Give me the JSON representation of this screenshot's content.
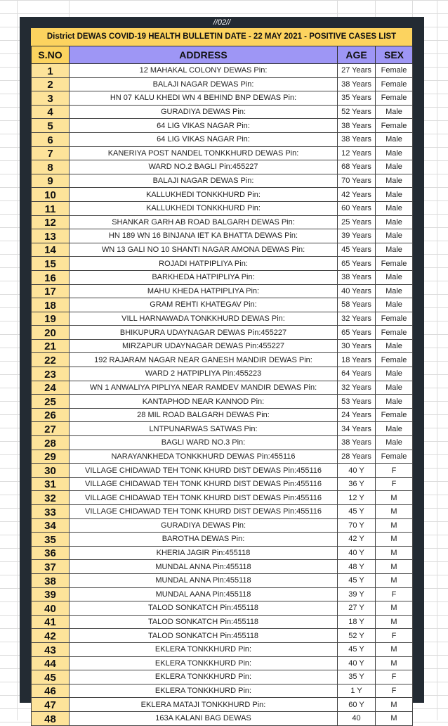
{
  "page_number": "//02//",
  "title": "District DEWAS COVID-19 HEALTH BULLETIN DATE - 22 MAY 2021 - POSITIVE CASES LIST",
  "columns": [
    "S.NO",
    "ADDRESS",
    "AGE",
    "SEX"
  ],
  "rows": [
    [
      "1",
      "12 MAHAKAL COLONY DEWAS Pin:",
      "27 Years",
      "Female"
    ],
    [
      "2",
      "BALAJI NAGAR DEWAS Pin:",
      "38 Years",
      "Female"
    ],
    [
      "3",
      "HN 07 KALU KHEDI WN 4 BEHIND BNP DEWAS Pin:",
      "35 Years",
      "Female"
    ],
    [
      "4",
      "GURADIYA DEWAS Pin:",
      "52 Years",
      "Male"
    ],
    [
      "5",
      "64 LIG VIKAS NAGAR Pin:",
      "38 Years",
      "Female"
    ],
    [
      "6",
      "64 LIG VIKAS NAGAR Pin:",
      "38 Years",
      "Male"
    ],
    [
      "7",
      "KANERIYA POST NANDEL TONKKHURD DEWAS Pin:",
      "12 Years",
      "Male"
    ],
    [
      "8",
      "WARD NO.2 BAGLI Pin:455227",
      "68 Years",
      "Male"
    ],
    [
      "9",
      "BALAJI NAGAR DEWAS Pin:",
      "70 Years",
      "Male"
    ],
    [
      "10",
      "KALLUKHEDI TONKKHURD Pin:",
      "42 Years",
      "Male"
    ],
    [
      "11",
      "KALLUKHEDI TONKKHURD Pin:",
      "60 Years",
      "Male"
    ],
    [
      "12",
      "SHANKAR GARH AB ROAD BALGARH DEWAS Pin:",
      "25 Years",
      "Male"
    ],
    [
      "13",
      "HN 189 WN 16 BINJANA IET KA BHATTA DEWAS Pin:",
      "39 Years",
      "Male"
    ],
    [
      "14",
      "WN 13 GALI NO 10 SHANTI  NAGAR AMONA DEWAS Pin:",
      "45 Years",
      "Male"
    ],
    [
      "15",
      "ROJADI HATPIPLIYA Pin:",
      "65 Years",
      "Female"
    ],
    [
      "16",
      "BARKHEDA HATPIPLIYA Pin:",
      "38 Years",
      "Male"
    ],
    [
      "17",
      "MAHU KHEDA HATPIPLIYA Pin:",
      "40 Years",
      "Male"
    ],
    [
      "18",
      "GRAM REHTI KHATEGAV Pin:",
      "58 Years",
      "Male"
    ],
    [
      "19",
      "VILL HARNAWADA TONKKHURD DEWAS Pin:",
      "32 Years",
      "Female"
    ],
    [
      "20",
      "BHIKUPURA  UDAYNAGAR DEWAS Pin:455227",
      "65 Years",
      "Female"
    ],
    [
      "21",
      "MIRZAPUR UDAYNAGAR DEWAS Pin:455227",
      "30 Years",
      "Male"
    ],
    [
      "22",
      "192 RAJARAM NAGAR NEAR GANESH MANDIR DEWAS Pin:",
      "18 Years",
      "Female"
    ],
    [
      "23",
      "WARD 2 HATPIPLIYA Pin:455223",
      "64 Years",
      "Male"
    ],
    [
      "24",
      "WN 1 ANWALIYA PIPLIYA NEAR RAMDEV MANDIR DEWAS Pin:",
      "32 Years",
      "Male"
    ],
    [
      "25",
      "KANTAPHOD NEAR KANNOD Pin:",
      "53 Years",
      "Male"
    ],
    [
      "26",
      "28 MIL ROAD BALGARH DEWAS Pin:",
      "24 Years",
      "Female"
    ],
    [
      "27",
      "LNTPUNARWAS SATWAS Pin:",
      "34 Years",
      "Male"
    ],
    [
      "28",
      "BAGLI WARD NO.3 Pin:",
      "38 Years",
      "Male"
    ],
    [
      "29",
      "NARAYANKHEDA TONKKHURD DEWAS Pin:455116",
      "28 Years",
      "Female"
    ],
    [
      "30",
      "VILLAGE CHIDAWAD TEH TONK KHURD DIST DEWAS Pin:455116",
      "40 Y",
      "F"
    ],
    [
      "31",
      "VILLAGE CHIDAWAD TEH TONK KHURD DIST DEWAS Pin:455116",
      "36 Y",
      "F"
    ],
    [
      "32",
      "VILLAGE CHIDAWAD TEH TONK KHURD DIST DEWAS Pin:455116",
      "12 Y",
      "M"
    ],
    [
      "33",
      "VILLAGE CHIDAWAD TEH TONK KHURD DIST DEWAS Pin:455116",
      "45 Y",
      "M"
    ],
    [
      "34",
      "GURADIYA DEWAS Pin:",
      "70 Y",
      "M"
    ],
    [
      "35",
      "BAROTHA DEWAS Pin:",
      "42 Y",
      "M"
    ],
    [
      "36",
      "KHERIA JAGIR Pin:455118",
      "40 Y",
      "M"
    ],
    [
      "37",
      "MUNDAL ANNA Pin:455118",
      "48 Y",
      "M"
    ],
    [
      "38",
      "MUNDAL ANNA Pin:455118",
      "45 Y",
      "M"
    ],
    [
      "39",
      "MUNDAL AANA Pin:455118",
      "39 Y",
      "F"
    ],
    [
      "40",
      "TALOD SONKATCH Pin:455118",
      "27 Y",
      "M"
    ],
    [
      "41",
      "TALOD SONKATCH Pin:455118",
      "18 Y",
      "M"
    ],
    [
      "42",
      "TALOD SONKATCH Pin:455118",
      "52 Y",
      "F"
    ],
    [
      "43",
      "EKLERA TONKKHURD Pin:",
      "45 Y",
      "M"
    ],
    [
      "44",
      "EKLERA TONKKHURD Pin:",
      "40 Y",
      "M"
    ],
    [
      "45",
      "EKLERA TONKKHURD Pin:",
      "35 Y",
      "F"
    ],
    [
      "46",
      "EKLERA TONKKHURD Pin:",
      "1 Y",
      "F"
    ],
    [
      "47",
      "EKLERA MATAJI TONKKHURD Pin:",
      "60 Y",
      "M"
    ],
    [
      "48",
      "163A KALANI BAG DEWAS",
      "40",
      "M"
    ]
  ],
  "colors": {
    "frame": "#232b33",
    "title_bg": "#fcd35f",
    "header_bg": "#9e96f5",
    "sno_bg": "#fde39a"
  }
}
